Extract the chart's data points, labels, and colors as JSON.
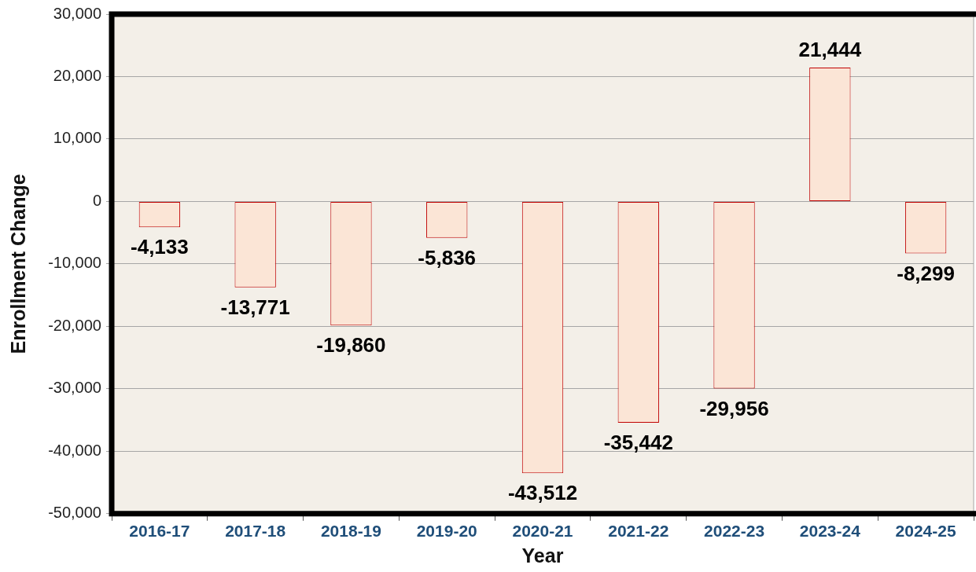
{
  "chart_data": {
    "type": "bar",
    "xlabel": "Year",
    "ylabel": "Enrollment Change",
    "categories": [
      "2016-17",
      "2017-18",
      "2018-19",
      "2019-20",
      "2020-21",
      "2021-22",
      "2022-23",
      "2023-24",
      "2024-25"
    ],
    "values": [
      -4133,
      -13771,
      -19860,
      -5836,
      -43512,
      -35442,
      -29956,
      21444,
      -8299
    ],
    "value_labels": [
      "-4,133",
      "-13,771",
      "-19,860",
      "-5,836",
      "-43,512",
      "-35,442",
      "-29,956",
      "21,444",
      "-8,299"
    ],
    "color": "#fbe5d6",
    "ylim": [
      -50000,
      30000
    ],
    "yticks": [
      {
        "value": -50000,
        "label": "-50,000"
      },
      {
        "value": -40000,
        "label": "-40,000"
      },
      {
        "value": -30000,
        "label": "-30,000"
      },
      {
        "value": -20000,
        "label": "-20,000"
      },
      {
        "value": -10000,
        "label": "-10,000"
      },
      0,
      {
        "value": 10000,
        "label": "10,000"
      },
      {
        "value": 20000,
        "label": "20,000"
      },
      {
        "value": 30000,
        "label": "30,000"
      }
    ],
    "grid": "y",
    "legend": false
  }
}
